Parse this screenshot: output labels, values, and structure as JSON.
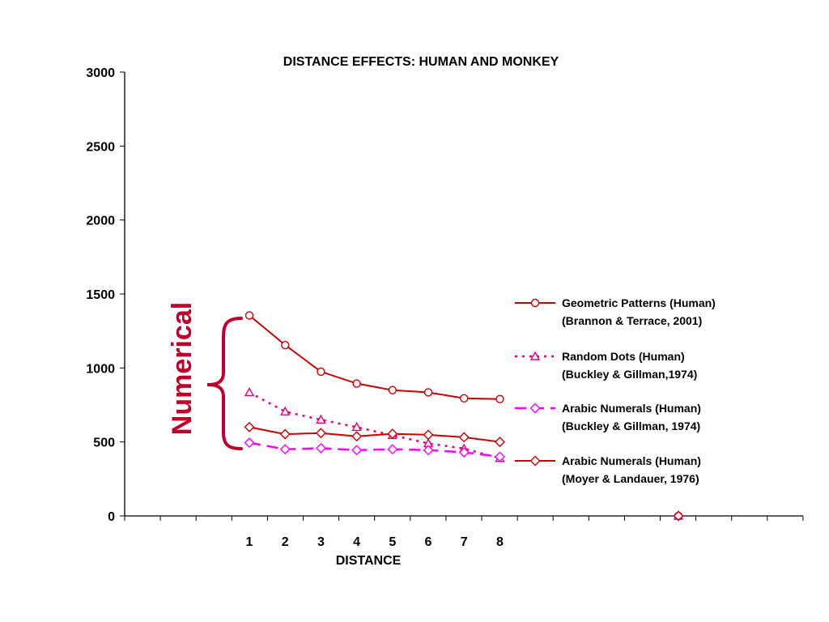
{
  "chart_data": {
    "type": "line",
    "title": "DISTANCE EFFECTS: HUMAN AND MONKEY",
    "xlabel": "DISTANCE",
    "ylabel": "",
    "categories": [
      "1",
      "2",
      "3",
      "4",
      "5",
      "6",
      "7",
      "8"
    ],
    "y_ticks": [
      "0",
      "500",
      "1000",
      "1500",
      "2000",
      "2500",
      "3000"
    ],
    "ylim": [
      0,
      3000
    ],
    "grid": false,
    "legend_position": "right",
    "series": [
      {
        "name": "Geometric Patterns (Human)",
        "name_line2": "(Brannon & Terrace, 2001)",
        "values": [
          1355,
          1155,
          975,
          895,
          850,
          835,
          795,
          790
        ],
        "color": "#cc0000",
        "line": "solid",
        "marker": "circle"
      },
      {
        "name": "Random Dots (Human)",
        "name_line2": "(Buckley & Gillman,1974)",
        "values": [
          835,
          705,
          650,
          600,
          545,
          490,
          455,
          390
        ],
        "color": "#e6007e",
        "line": "dotted",
        "marker": "triangle"
      },
      {
        "name": "Arabic Numerals (Human)",
        "name_line2": "(Buckley & Gillman, 1974)",
        "values": [
          495,
          450,
          458,
          445,
          450,
          445,
          430,
          400
        ],
        "color": "#ff00ff",
        "line": "dashed",
        "marker": "diamond"
      },
      {
        "name": "Arabic Numerals (Human)",
        "name_line2": "(Moyer & Landauer, 1976)",
        "values": [
          600,
          552,
          560,
          538,
          555,
          548,
          532,
          500
        ],
        "color": "#cc0000",
        "line": "solid",
        "marker": "diamond"
      }
    ],
    "extra_points": [
      {
        "y": 0
      }
    ],
    "annotation": {
      "text": "Numerical",
      "color": "#c0002a"
    }
  }
}
